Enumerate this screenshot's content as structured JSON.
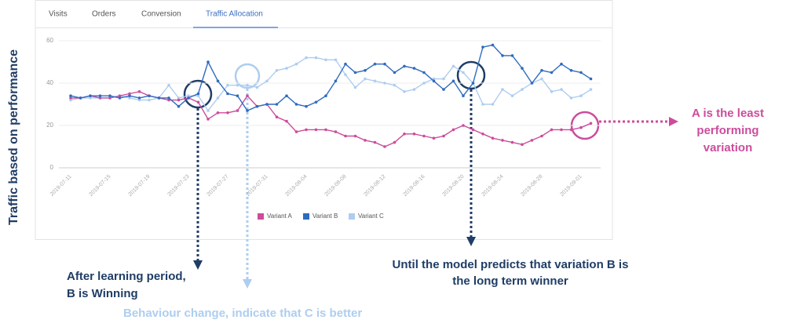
{
  "tabs": [
    "Visits",
    "Orders",
    "Conversion",
    "Traffic Allocation"
  ],
  "annotations": {
    "y_label": "Traffic based on performance",
    "learning": [
      "After learning period,",
      "B is Winning"
    ],
    "behaviour": "Behaviour change, indicate that C is better",
    "model": [
      "Until the model predicts that variation B is",
      "the long term winner"
    ],
    "least": [
      "A is the least",
      "performing",
      "variation"
    ]
  },
  "chart_data": {
    "type": "line",
    "categories": [
      "2019-07-11",
      null,
      null,
      null,
      "2019-07-15",
      null,
      null,
      null,
      "2019-07-19",
      null,
      null,
      null,
      "2019-07-23",
      null,
      null,
      null,
      "2019-07-27",
      null,
      null,
      null,
      "2019-07-31",
      null,
      null,
      null,
      "2019-08-04",
      null,
      null,
      null,
      "2019-08-08",
      null,
      null,
      null,
      "2019-08-12",
      null,
      null,
      null,
      "2019-08-16",
      null,
      null,
      null,
      "2019-08-20",
      null,
      null,
      null,
      "2019-08-24",
      null,
      null,
      null,
      "2019-08-28",
      null,
      null,
      null,
      "2019-09-01",
      null
    ],
    "series": [
      {
        "name": "Variant A",
        "color": "#cc4c9c",
        "values": [
          33,
          33,
          34,
          33,
          33,
          34,
          35,
          36,
          34,
          33,
          32,
          32,
          33,
          31,
          23,
          26,
          26,
          27,
          34,
          29,
          30,
          24,
          22,
          17,
          18,
          18,
          18,
          17,
          15,
          15,
          13,
          12,
          10,
          12,
          16,
          16,
          15,
          14,
          15,
          18,
          20,
          18,
          16,
          14,
          13,
          12,
          11,
          13,
          15,
          18,
          18,
          18,
          19,
          21
        ]
      },
      {
        "name": "Variant B",
        "color": "#2f6bbf",
        "values": [
          34,
          33,
          34,
          34,
          34,
          33,
          34,
          33,
          34,
          33,
          33,
          29,
          33,
          35,
          50,
          41,
          35,
          34,
          27,
          29,
          30,
          30,
          34,
          30,
          29,
          31,
          34,
          41,
          49,
          45,
          46,
          49,
          49,
          45,
          48,
          47,
          45,
          41,
          37,
          41,
          34,
          40,
          57,
          58,
          53,
          53,
          47,
          40,
          46,
          45,
          49,
          46,
          45,
          42
        ]
      },
      {
        "name": "Variant C",
        "color": "#aecdf0",
        "values": [
          32,
          33,
          33,
          33,
          33,
          34,
          33,
          32,
          32,
          33,
          39,
          33,
          34,
          34,
          27,
          33,
          39,
          39,
          39,
          38,
          41,
          46,
          47,
          49,
          52,
          52,
          51,
          51,
          44,
          38,
          42,
          41,
          40,
          39,
          36,
          37,
          40,
          42,
          42,
          48,
          45,
          40,
          30,
          30,
          37,
          34,
          37,
          40,
          42,
          36,
          37,
          33,
          34,
          37
        ]
      }
    ],
    "ylim": [
      0,
      60
    ],
    "yticks": [
      0,
      20,
      40,
      60
    ],
    "grid": true,
    "legend": "bottom"
  }
}
